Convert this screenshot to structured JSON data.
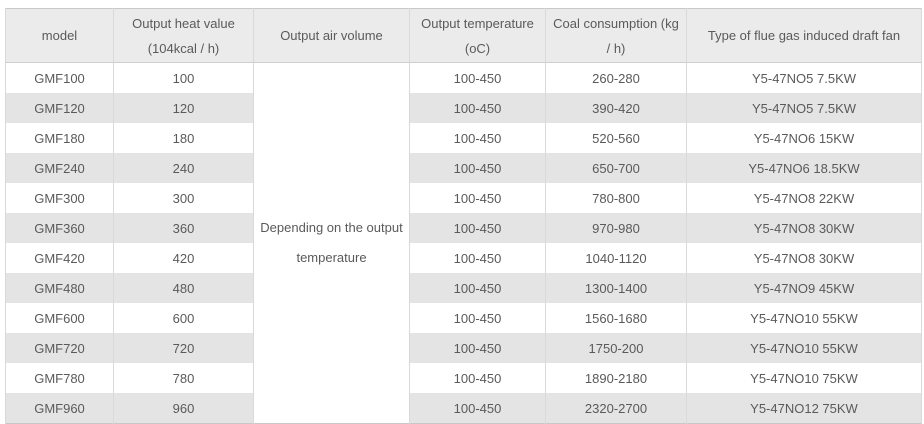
{
  "colors": {
    "header_bg": "#ebebeb",
    "row_bg": "#ffffff",
    "row_alt_bg": "#e4e4e4",
    "border": "#d9d9d9",
    "border_strong": "#cfcfcf",
    "outer_border": "#c8c8c8",
    "text": "#5a5a5a"
  },
  "table": {
    "headers": [
      {
        "id": "model",
        "lines": [
          "model"
        ]
      },
      {
        "id": "heat",
        "lines": [
          "Output heat value",
          "(104kcal / h)"
        ]
      },
      {
        "id": "air",
        "lines": [
          "Output air volume"
        ]
      },
      {
        "id": "temp",
        "lines": [
          "Output temperature",
          "(oC)"
        ]
      },
      {
        "id": "coal",
        "lines": [
          "Coal consumption (kg",
          "/ h)"
        ]
      },
      {
        "id": "fan",
        "lines": [
          "Type of flue gas induced draft fan"
        ]
      }
    ],
    "air_volume_note_lines": [
      "Depending on the output",
      "temperature"
    ],
    "rows": [
      {
        "model": "GMF100",
        "heat": "100",
        "temp": "100-450",
        "coal": "260-280",
        "fan": "Y5-47NO5 7.5KW"
      },
      {
        "model": "GMF120",
        "heat": "120",
        "temp": "100-450",
        "coal": "390-420",
        "fan": "Y5-47NO5 7.5KW"
      },
      {
        "model": "GMF180",
        "heat": "180",
        "temp": "100-450",
        "coal": "520-560",
        "fan": "Y5-47NO6 15KW"
      },
      {
        "model": "GMF240",
        "heat": "240",
        "temp": "100-450",
        "coal": "650-700",
        "fan": "Y5-47NO6 18.5KW"
      },
      {
        "model": "GMF300",
        "heat": "300",
        "temp": "100-450",
        "coal": "780-800",
        "fan": "Y5-47NO8 22KW"
      },
      {
        "model": "GMF360",
        "heat": "360",
        "temp": "100-450",
        "coal": "970-980",
        "fan": "Y5-47NO8 30KW"
      },
      {
        "model": "GMF420",
        "heat": "420",
        "temp": "100-450",
        "coal": "1040-1120",
        "fan": "Y5-47NO8 30KW"
      },
      {
        "model": "GMF480",
        "heat": "480",
        "temp": "100-450",
        "coal": "1300-1400",
        "fan": "Y5-47NO9 45KW"
      },
      {
        "model": "GMF600",
        "heat": "600",
        "temp": "100-450",
        "coal": "1560-1680",
        "fan": "Y5-47NO10 55KW"
      },
      {
        "model": "GMF720",
        "heat": "720",
        "temp": "100-450",
        "coal": "1750-200",
        "fan": "Y5-47NO10 55KW"
      },
      {
        "model": "GMF780",
        "heat": "780",
        "temp": "100-450",
        "coal": "1890-2180",
        "fan": "Y5-47NO10 75KW"
      },
      {
        "model": "GMF960",
        "heat": "960",
        "temp": "100-450",
        "coal": "2320-2700",
        "fan": "Y5-47NO12 75KW"
      }
    ]
  },
  "chart_data": {
    "type": "table",
    "title": "",
    "columns": [
      "model",
      "Output heat value (104kcal / h)",
      "Output air volume",
      "Output temperature (oC)",
      "Coal consumption (kg / h)",
      "Type of flue gas induced draft fan"
    ],
    "merged_cells": [
      {
        "column": "Output air volume",
        "value": "Depending on the output temperature",
        "spans_rows": "all 12 data rows"
      }
    ],
    "rows": [
      [
        "GMF100",
        "100",
        "Depending on the output temperature",
        "100-450",
        "260-280",
        "Y5-47NO5 7.5KW"
      ],
      [
        "GMF120",
        "120",
        "Depending on the output temperature",
        "100-450",
        "390-420",
        "Y5-47NO5 7.5KW"
      ],
      [
        "GMF180",
        "180",
        "Depending on the output temperature",
        "100-450",
        "520-560",
        "Y5-47NO6 15KW"
      ],
      [
        "GMF240",
        "240",
        "Depending on the output temperature",
        "100-450",
        "650-700",
        "Y5-47NO6 18.5KW"
      ],
      [
        "GMF300",
        "300",
        "Depending on the output temperature",
        "100-450",
        "780-800",
        "Y5-47NO8 22KW"
      ],
      [
        "GMF360",
        "360",
        "Depending on the output temperature",
        "100-450",
        "970-980",
        "Y5-47NO8 30KW"
      ],
      [
        "GMF420",
        "420",
        "Depending on the output temperature",
        "100-450",
        "1040-1120",
        "Y5-47NO8 30KW"
      ],
      [
        "GMF480",
        "480",
        "Depending on the output temperature",
        "100-450",
        "1300-1400",
        "Y5-47NO9 45KW"
      ],
      [
        "GMF600",
        "600",
        "Depending on the output temperature",
        "100-450",
        "1560-1680",
        "Y5-47NO10 55KW"
      ],
      [
        "GMF720",
        "720",
        "Depending on the output temperature",
        "100-450",
        "1750-200",
        "Y5-47NO10 55KW"
      ],
      [
        "GMF780",
        "780",
        "Depending on the output temperature",
        "100-450",
        "1890-2180",
        "Y5-47NO10 75KW"
      ],
      [
        "GMF960",
        "960",
        "Depending on the output temperature",
        "100-450",
        "2320-2700",
        "Y5-47NO12 75KW"
      ]
    ]
  }
}
